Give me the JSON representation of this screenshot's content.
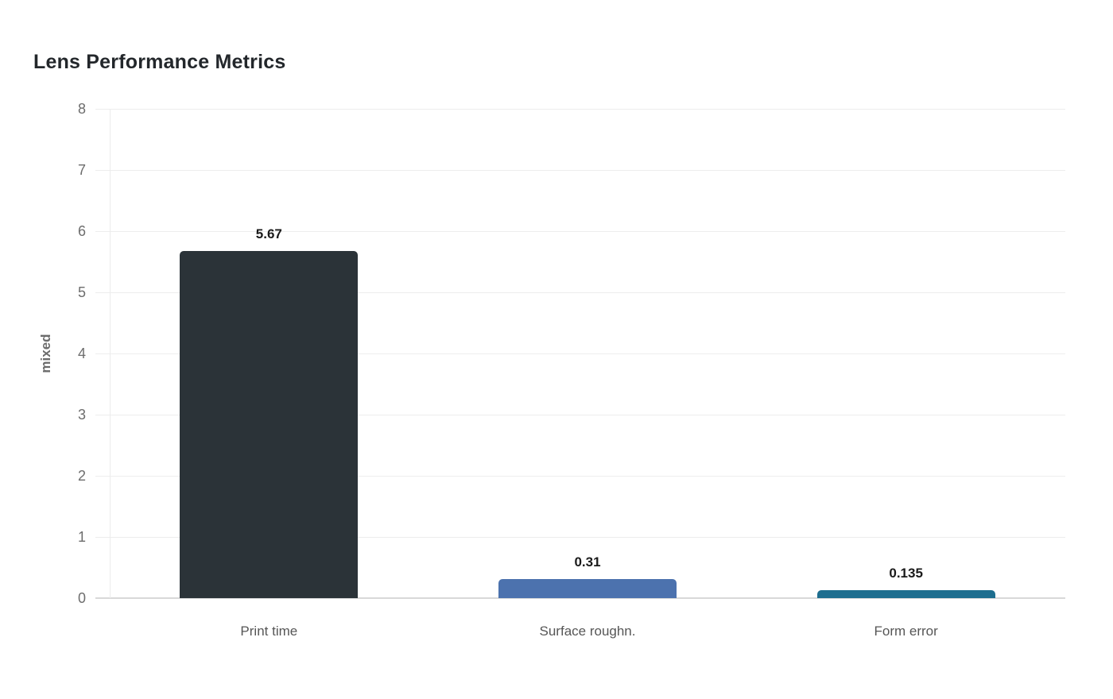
{
  "chart_data": {
    "type": "bar",
    "title": "Lens Performance Metrics",
    "xlabel": "",
    "ylabel": "mixed",
    "categories": [
      "Print time",
      "Surface roughn.",
      "Form error"
    ],
    "values": [
      5.67,
      0.31,
      0.135
    ],
    "value_labels": [
      "5.67",
      "0.31",
      "0.135"
    ],
    "bar_colors": [
      "#2b3338",
      "#4c72ae",
      "#1e6e8f"
    ],
    "ylim": [
      0,
      8
    ],
    "yticks": [
      0,
      1,
      2,
      3,
      4,
      5,
      6,
      7,
      8
    ],
    "grid": "horizontal",
    "legend": "none",
    "colors": {
      "background": "#ffffff",
      "title_text": "#23272b",
      "axis_title_text": "#6b6b6b",
      "tick_label_text": "#6d6d6d",
      "category_label_text": "#565656",
      "value_label_text": "#1a1a1a",
      "gridline": "#ededed",
      "baseline": "#d8d8d8",
      "y_axis_line": "#ececec"
    }
  }
}
